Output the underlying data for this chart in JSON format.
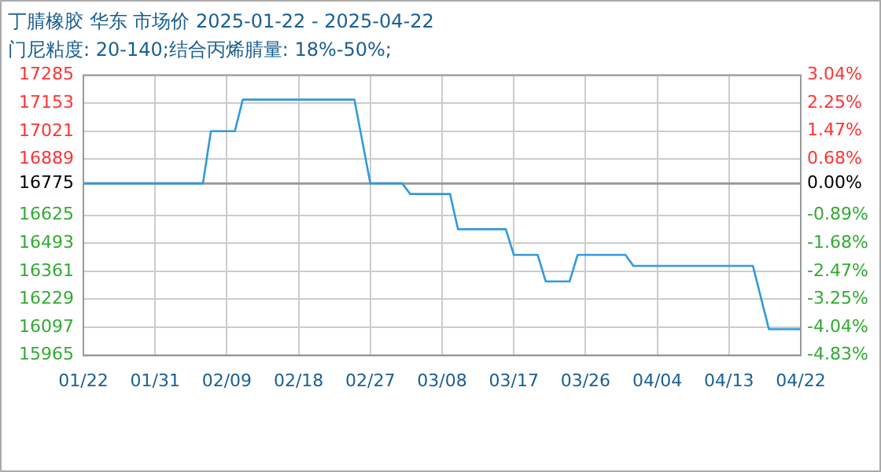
{
  "chart_data": {
    "type": "line",
    "title": "丁腈橡胶 华东 市场价 2025-01-22 - 2025-04-22",
    "subtitle": "门尼粘度: 20-140;结合丙烯腈量: 18%-50%;",
    "x": [
      "2025-01-22",
      "2025-02-06",
      "2025-02-07",
      "2025-02-10",
      "2025-02-11",
      "2025-02-25",
      "2025-02-27",
      "2025-03-03",
      "2025-03-04",
      "2025-03-09",
      "2025-03-10",
      "2025-03-16",
      "2025-03-17",
      "2025-03-20",
      "2025-03-21",
      "2025-03-24",
      "2025-03-25",
      "2025-03-31",
      "2025-04-01",
      "2025-04-16",
      "2025-04-18",
      "2025-04-22"
    ],
    "series": [
      {
        "color": "#3399dd",
        "values": [
          16775,
          16775,
          17021,
          17021,
          17170,
          17170,
          16775,
          16775,
          16725,
          16725,
          16559,
          16559,
          16438,
          16438,
          16313,
          16313,
          16438,
          16438,
          16386,
          16386,
          16088,
          16088
        ]
      }
    ],
    "xlim": [
      "2025-01-22",
      "2025-04-22"
    ],
    "xticks": [
      {
        "value": "2025-01-22",
        "label": "01/22"
      },
      {
        "value": "2025-01-31",
        "label": "01/31"
      },
      {
        "value": "2025-02-09",
        "label": "02/09"
      },
      {
        "value": "2025-02-18",
        "label": "02/18"
      },
      {
        "value": "2025-02-27",
        "label": "02/27"
      },
      {
        "value": "2025-03-08",
        "label": "03/08"
      },
      {
        "value": "2025-03-17",
        "label": "03/17"
      },
      {
        "value": "2025-03-26",
        "label": "03/26"
      },
      {
        "value": "2025-04-04",
        "label": "04/04"
      },
      {
        "value": "2025-04-13",
        "label": "04/13"
      },
      {
        "value": "2025-04-22",
        "label": "04/22"
      }
    ],
    "ylim": [
      15965,
      17285
    ],
    "yticks": [
      15965,
      16097,
      16229,
      16361,
      16493,
      16625,
      16775,
      16889,
      17021,
      17153,
      17285
    ],
    "y2lim": [
      -4.83,
      3.04
    ],
    "y2ticks": [
      {
        "value": -4.83,
        "label": "-4.83%"
      },
      {
        "value": -4.04,
        "label": "-4.04%"
      },
      {
        "value": -3.25,
        "label": "-3.25%"
      },
      {
        "value": -2.47,
        "label": "-2.47%"
      },
      {
        "value": -1.68,
        "label": "-1.68%"
      },
      {
        "value": -0.89,
        "label": "-0.89%"
      },
      {
        "value": 0,
        "label": "0.00%"
      },
      {
        "value": 0.68,
        "label": "0.68%"
      },
      {
        "value": 1.47,
        "label": "1.47%"
      },
      {
        "value": 2.25,
        "label": "2.25%"
      },
      {
        "value": 3.04,
        "label": "3.04%"
      }
    ],
    "ref_lines": [
      {
        "axis": "y",
        "value": 16775,
        "color": "#999999"
      }
    ],
    "grid": true,
    "legend": false,
    "marker": "none",
    "line_style": "solid"
  }
}
